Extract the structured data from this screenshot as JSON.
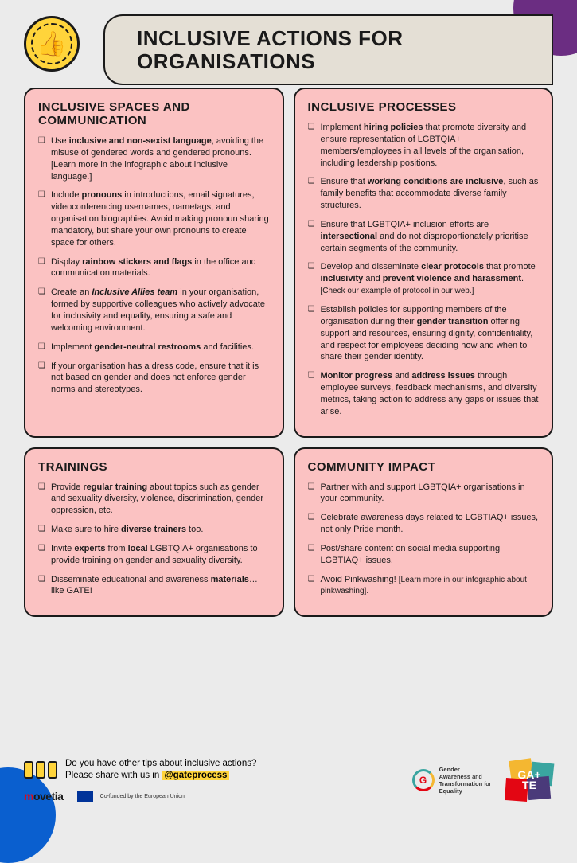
{
  "colors": {
    "background": "#ebebeb",
    "card_bg": "#fbc2c2",
    "title_bg": "#e4dfd5",
    "border": "#1a1a1a",
    "accent_yellow": "#ffd43b",
    "purple": "#6b2d82",
    "blue": "#0a5fcf"
  },
  "title": "INCLUSIVE ACTIONS FOR ORGANISATIONS",
  "cards": {
    "spaces": {
      "heading": "INCLUSIVE SPACES AND COMMUNICATION",
      "items": [
        "Use <b>inclusive and non-sexist language</b>, avoiding the misuse of gendered words and gendered pronouns. [Learn more in the infographic about inclusive language.]",
        "Include <b>pronouns</b> in introductions, email signatures, videoconferencing usernames, nametags, and organisation biographies. Avoid making pronoun sharing mandatory, but share your own pronouns to create space for others.",
        "Display <b>rainbow stickers and flags</b> in the office and communication materials.",
        "Create an <b><i>Inclusive Allies team</i></b> in your organisation, formed by supportive colleagues who actively advocate for inclusivity and equality, ensuring a safe and welcoming environment.",
        "Implement <b>gender-neutral restrooms</b> and facilities.",
        "If your organisation has a dress code, ensure that it is not based on gender and does not enforce gender norms and stereotypes."
      ]
    },
    "processes": {
      "heading": "INCLUSIVE PROCESSES",
      "items": [
        "Implement <b>hiring policies</b> that promote diversity and ensure representation of LGBTQIA+ members/employees in all levels of the organisation, including leadership positions.",
        "Ensure that <b>working conditions are inclusive</b>, such as family benefits that accommodate diverse family structures.",
        "Ensure that LGBTQIA+ inclusion efforts are <b>intersectional</b> and do not disproportionately prioritise certain segments of the community.",
        "Develop and disseminate <b>clear protocols</b> that promote <b>inclusivity</b> and <b>prevent violence and harassment</b>. <span class='note'>[Check our example of protocol in our web.]</span>",
        "Establish policies for supporting members of the organisation during their <b>gender transition</b> offering support and resources, ensuring dignity, confidentiality, and respect for employees deciding how and when to share their gender identity.",
        "<b>Monitor progress</b> and <b>address issues</b> through employee surveys, feedback mechanisms, and diversity metrics, taking action to address any gaps or issues that arise."
      ]
    },
    "trainings": {
      "heading": "TRAININGS",
      "items": [
        "Provide <b>regular training</b> about topics such as gender and sexuality diversity, violence, discrimination, gender oppression, etc.",
        "Make sure to hire <b>diverse trainers</b> too.",
        "Invite <b>experts</b> from <b>local</b> LGBTQIA+ organisations to provide training on gender and sexuality diversity.",
        "Disseminate educational and awareness <b>materials</b>… like GATE!"
      ]
    },
    "community": {
      "heading": "COMMUNITY IMPACT",
      "items": [
        "Partner with and support LGBTQIA+ organisations in your community.",
        "Celebrate awareness days related to LGBTIAQ+ issues, not only Pride month.",
        "Post/share content on social media supporting LGBTIAQ+ issues.",
        "Avoid Pinkwashing! <span class='note'>[Learn more in our infographic about pinkwashing].</span>"
      ]
    }
  },
  "footer": {
    "share_line1": "Do you have other tips about inclusive actions?",
    "share_line2_pre": "Please share with us in ",
    "handle": "@gateprocess",
    "movetia": "movetia",
    "eu_text": "Co-funded by the European Union",
    "gender_aware_lines": "Gender Awareness and Transformation for Equality",
    "gate_logo": "GA+ TE"
  }
}
